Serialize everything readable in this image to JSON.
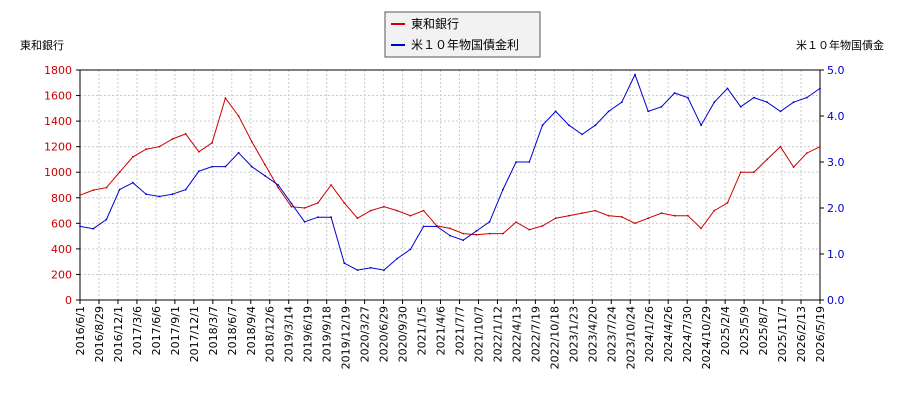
{
  "chart_data": {
    "type": "line",
    "title": "",
    "legend_placement": "top-center",
    "grid": true,
    "left_axis": {
      "label": "東和銀行",
      "ylim": [
        0,
        1800
      ],
      "ticks": [
        0,
        200,
        400,
        600,
        800,
        1000,
        1200,
        1400,
        1600,
        1800
      ],
      "tick_labels": [
        "0",
        "200",
        "400",
        "600",
        "800",
        "1000",
        "1200",
        "1400",
        "1600",
        "1800"
      ],
      "color": "#cc0000"
    },
    "right_axis": {
      "label": "米１０年物国債金",
      "ylim": [
        0,
        5
      ],
      "ticks": [
        0,
        1,
        2,
        3,
        4,
        5
      ],
      "tick_labels": [
        "0.0",
        "1.0",
        "2.0",
        "3.0",
        "4.0",
        "5.0"
      ],
      "color": "#0000cc"
    },
    "x_tick_labels": [
      "2016/6/1",
      "2016/8/29",
      "2016/12/1",
      "2017/3/6",
      "2017/6/6",
      "2017/9/1",
      "2017/12/1",
      "2018/3/7",
      "2018/6/7",
      "2018/9/4",
      "2018/12/6",
      "2019/3/14",
      "2019/6/19",
      "2019/9/18",
      "2019/12/19",
      "2020/3/27",
      "2020/6/29",
      "2020/9/30",
      "2021/1/5",
      "2021/4/6",
      "2021/7/7",
      "2021/10/7",
      "2022/1/12",
      "2022/4/13",
      "2022/7/19",
      "2022/10/18",
      "2023/1/23",
      "2023/4/20",
      "2023/7/24",
      "2023/10/24",
      "2024/1/26",
      "2024/4/26",
      "2024/7/30",
      "2024/10/29",
      "2025/2/4",
      "2025/5/9",
      "2025/8/7",
      "2025/11/7",
      "2026/2/13",
      "2026/5/19"
    ],
    "series": [
      {
        "name": "東和銀行",
        "axis": "left",
        "color": "#cc0000",
        "values": [
          820,
          860,
          880,
          1000,
          1120,
          1180,
          1200,
          1260,
          1300,
          1160,
          1230,
          1580,
          1440,
          1240,
          1060,
          880,
          730,
          720,
          760,
          900,
          760,
          640,
          700,
          730,
          700,
          660,
          700,
          580,
          560,
          520,
          510,
          520,
          520,
          610,
          550,
          580,
          640,
          660,
          680,
          700,
          660,
          650,
          600,
          640,
          680,
          660,
          660,
          560,
          700,
          760,
          1000,
          1000,
          1100,
          1200,
          1040,
          1150,
          1200
        ]
      },
      {
        "name": "米１０年物国債金利",
        "axis": "right",
        "color": "#0000cc",
        "values": [
          1.6,
          1.55,
          1.75,
          2.4,
          2.55,
          2.3,
          2.25,
          2.3,
          2.4,
          2.8,
          2.9,
          2.9,
          3.2,
          2.9,
          2.7,
          2.5,
          2.1,
          1.7,
          1.8,
          1.8,
          0.8,
          0.65,
          0.7,
          0.65,
          0.9,
          1.1,
          1.6,
          1.6,
          1.4,
          1.3,
          1.5,
          1.7,
          2.4,
          3.0,
          3.0,
          3.8,
          4.1,
          3.8,
          3.6,
          3.8,
          4.1,
          4.3,
          4.9,
          4.1,
          4.2,
          4.5,
          4.4,
          3.8,
          4.3,
          4.6,
          4.2,
          4.4,
          4.3,
          4.1,
          4.3,
          4.4,
          4.6
        ]
      }
    ]
  }
}
